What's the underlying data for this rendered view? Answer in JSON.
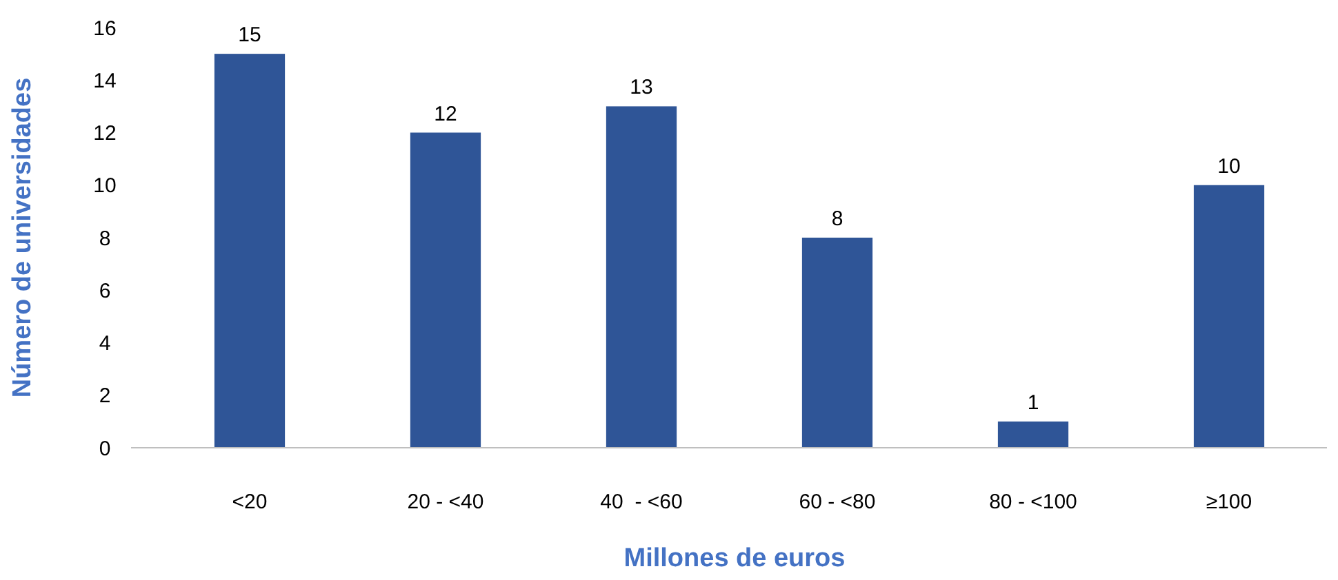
{
  "chart_data": {
    "type": "bar",
    "xlabel": "Millones de euros",
    "ylabel": "Número de universidades",
    "categories": [
      "<20",
      "20 - <40",
      "40  - <60",
      "60 - <80",
      "80 - <100",
      "≥100"
    ],
    "values": [
      15,
      12,
      13,
      8,
      1,
      10
    ],
    "color": "#2f5597",
    "ylim": [
      0,
      16
    ],
    "yticks": [
      0,
      2,
      4,
      6,
      8,
      10,
      12,
      14,
      16
    ],
    "grid": false,
    "data_labels": true
  }
}
